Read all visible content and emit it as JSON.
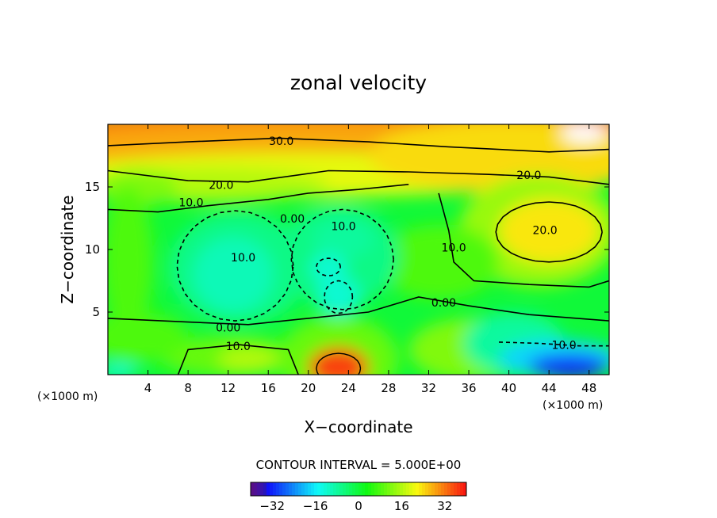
{
  "chart_data": {
    "type": "heatmap",
    "title": "zonal velocity",
    "xlabel": "X−coordinate",
    "ylabel": "Z−coordinate",
    "x_unit_left": "(×1000 m)",
    "x_unit_right": "(×1000 m)",
    "xlim": [
      0,
      50
    ],
    "ylim": [
      0,
      20
    ],
    "x_ticks": [
      "4",
      "8",
      "12",
      "16",
      "20",
      "24",
      "28",
      "32",
      "36",
      "40",
      "44",
      "48"
    ],
    "y_ticks": [
      "5",
      "10",
      "15"
    ],
    "contour_interval_text": "CONTOUR INTERVAL = 5.000E+00",
    "colorbar": {
      "range": [
        -40,
        40
      ],
      "ticks": [
        "−32",
        "−16",
        "0",
        "16",
        "32"
      ]
    },
    "contour_labels": [
      {
        "text": "30.0",
        "x": 17.3,
        "z": 18.6
      },
      {
        "text": "20.0",
        "x": 11.3,
        "z": 15.1
      },
      {
        "text": "20.0",
        "x": 42.0,
        "z": 15.9
      },
      {
        "text": "20.0",
        "x": 43.6,
        "z": 11.5
      },
      {
        "text": "10.0",
        "x": 8.3,
        "z": 13.7
      },
      {
        "text": "10.0",
        "x": 23.5,
        "z": 11.8
      },
      {
        "text": "10.0",
        "x": 34.5,
        "z": 10.1
      },
      {
        "text": "10.0",
        "x": 13.5,
        "z": 9.3
      },
      {
        "text": "10.0",
        "x": 13.0,
        "z": 2.2
      },
      {
        "text": "10.0",
        "x": 45.5,
        "z": 2.3
      },
      {
        "text": "0.00",
        "x": 18.4,
        "z": 12.4
      },
      {
        "text": "0.00",
        "x": 33.5,
        "z": 5.7
      },
      {
        "text": "0.00",
        "x": 12.0,
        "z": 3.7
      }
    ],
    "features": [
      {
        "x": 48,
        "z": 19,
        "value": 42
      },
      {
        "x": 40,
        "z": 19,
        "value": 36
      },
      {
        "x": 20,
        "z": 18.5,
        "value": 33
      },
      {
        "x": 44,
        "z": 11.5,
        "value": 23
      },
      {
        "x": 23,
        "z": 0.6,
        "value": 36
      },
      {
        "x": 46,
        "z": 0.7,
        "value": -32
      },
      {
        "x": 12,
        "z": 8.5,
        "value": -8
      },
      {
        "x": 22.5,
        "z": 8,
        "value": -9
      },
      {
        "x": 24,
        "z": 11,
        "value": -7
      },
      {
        "x": 40,
        "z": 3.0,
        "value": -10
      }
    ]
  }
}
